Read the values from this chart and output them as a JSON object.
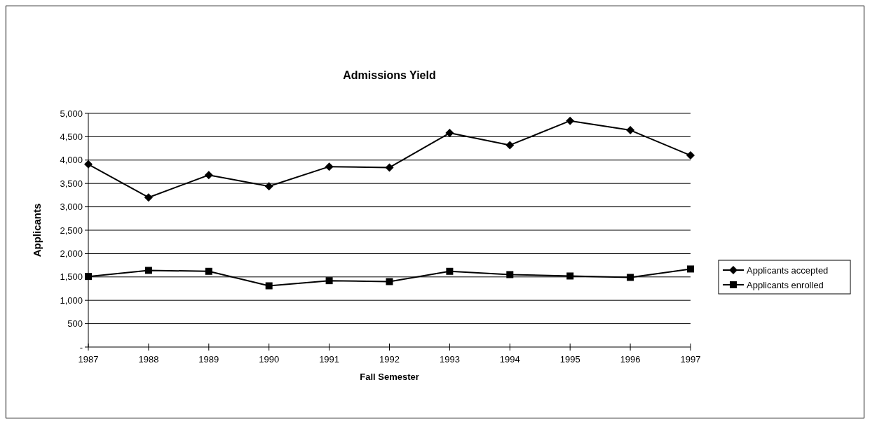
{
  "chart_data": {
    "type": "line",
    "title": "Admissions Yield",
    "xlabel": "Fall Semester",
    "ylabel": "Applicants",
    "categories": [
      "1987",
      "1988",
      "1989",
      "1990",
      "1991",
      "1992",
      "1993",
      "1994",
      "1995",
      "1996",
      "1997"
    ],
    "series": [
      {
        "name": "Applicants accepted",
        "color": "#000000",
        "marker": "diamond",
        "values": [
          3910,
          3200,
          3680,
          3440,
          3860,
          3840,
          4580,
          4320,
          4840,
          4640,
          4100
        ]
      },
      {
        "name": "Applicants enrolled",
        "color": "#000000",
        "marker": "square",
        "values": [
          1510,
          1640,
          1620,
          1310,
          1420,
          1400,
          1620,
          1550,
          1520,
          1490,
          1670
        ]
      }
    ],
    "ylim": [
      0,
      5000
    ],
    "yticks": [
      {
        "value": 0,
        "label": "-"
      },
      {
        "value": 500,
        "label": "500"
      },
      {
        "value": 1000,
        "label": "1,000"
      },
      {
        "value": 1500,
        "label": "1,500"
      },
      {
        "value": 2000,
        "label": "2,000"
      },
      {
        "value": 2500,
        "label": "2,500"
      },
      {
        "value": 3000,
        "label": "3,000"
      },
      {
        "value": 3500,
        "label": "3,500"
      },
      {
        "value": 4000,
        "label": "4,000"
      },
      {
        "value": 4500,
        "label": "4,500"
      },
      {
        "value": 5000,
        "label": "5,000"
      }
    ],
    "grid": "y",
    "legend": "right",
    "line_style": "solid"
  }
}
